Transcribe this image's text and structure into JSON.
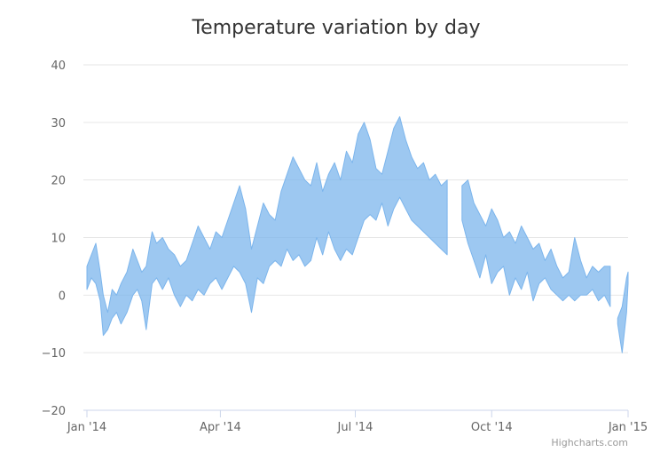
{
  "chart_data": {
    "type": "area",
    "subtype": "arearange",
    "title": "Temperature variation by day",
    "xlabel": "",
    "ylabel": "",
    "ylim": [
      -20,
      40
    ],
    "yticks": [
      40,
      30,
      20,
      10,
      0,
      -10,
      -20
    ],
    "y_tick_labels": [
      "40",
      "30",
      "20",
      "10",
      "0",
      "−10",
      "−20"
    ],
    "xlim": [
      "2014-01-01",
      "2015-01-01"
    ],
    "x_tick_labels": [
      {
        "date": "2014-01-01",
        "label": "Jan '14"
      },
      {
        "date": "2014-04-01",
        "label": "Apr '14"
      },
      {
        "date": "2014-07-01",
        "label": "Jul '14"
      },
      {
        "date": "2014-10-01",
        "label": "Oct '14"
      },
      {
        "date": "2015-01-01",
        "label": "Jan '15"
      }
    ],
    "grid": true,
    "legend": "none",
    "series": [
      {
        "color": "#7cb5ec",
        "segments": [
          {
            "dates": [
              "2014-01-01",
              "2014-01-04",
              "2014-01-07",
              "2014-01-10",
              "2014-01-12",
              "2014-01-15",
              "2014-01-18",
              "2014-01-21",
              "2014-01-24",
              "2014-01-28",
              "2014-02-01",
              "2014-02-04",
              "2014-02-07",
              "2014-02-10",
              "2014-02-14",
              "2014-02-17",
              "2014-02-21",
              "2014-02-25",
              "2014-03-01",
              "2014-03-05",
              "2014-03-09",
              "2014-03-13",
              "2014-03-17",
              "2014-03-21",
              "2014-03-25",
              "2014-03-29",
              "2014-04-02",
              "2014-04-06",
              "2014-04-10",
              "2014-04-14",
              "2014-04-18",
              "2014-04-22",
              "2014-04-26",
              "2014-04-30",
              "2014-05-04",
              "2014-05-08",
              "2014-05-12",
              "2014-05-16",
              "2014-05-20",
              "2014-05-24",
              "2014-05-28",
              "2014-06-01",
              "2014-06-05",
              "2014-06-09",
              "2014-06-13",
              "2014-06-17",
              "2014-06-21",
              "2014-06-25",
              "2014-06-29",
              "2014-07-03",
              "2014-07-07",
              "2014-07-11",
              "2014-07-15",
              "2014-07-19",
              "2014-07-23",
              "2014-07-27",
              "2014-07-31",
              "2014-08-04",
              "2014-08-08",
              "2014-08-12",
              "2014-08-16",
              "2014-08-20",
              "2014-08-24",
              "2014-08-28",
              "2014-09-01"
            ],
            "low": [
              1,
              3,
              2,
              -1,
              -7,
              -6,
              -4,
              -3,
              -5,
              -3,
              0,
              1,
              -1,
              -6,
              2,
              3,
              1,
              3,
              0,
              -2,
              0,
              -1,
              1,
              0,
              2,
              3,
              1,
              3,
              5,
              4,
              2,
              -3,
              3,
              2,
              5,
              6,
              5,
              8,
              6,
              7,
              5,
              6,
              10,
              7,
              11,
              8,
              6,
              8,
              7,
              10,
              13,
              14,
              13,
              16,
              12,
              15,
              17,
              15,
              13,
              12,
              11,
              10,
              9,
              8,
              7
            ],
            "high": [
              5,
              7,
              9,
              4,
              0,
              -3,
              1,
              0,
              2,
              4,
              8,
              6,
              4,
              5,
              11,
              9,
              10,
              8,
              7,
              5,
              6,
              9,
              12,
              10,
              8,
              11,
              10,
              13,
              16,
              19,
              15,
              8,
              12,
              16,
              14,
              13,
              18,
              21,
              24,
              22,
              20,
              19,
              23,
              18,
              21,
              23,
              20,
              25,
              23,
              28,
              30,
              27,
              22,
              21,
              25,
              29,
              31,
              27,
              24,
              22,
              23,
              20,
              21,
              19,
              20
            ]
          },
          {
            "dates": [
              "2014-09-11",
              "2014-09-15",
              "2014-09-19",
              "2014-09-23",
              "2014-09-27",
              "2014-10-01",
              "2014-10-05",
              "2014-10-09",
              "2014-10-13",
              "2014-10-17",
              "2014-10-21",
              "2014-10-25",
              "2014-10-29",
              "2014-11-02",
              "2014-11-06",
              "2014-11-10",
              "2014-11-14",
              "2014-11-18",
              "2014-11-22",
              "2014-11-26",
              "2014-11-30",
              "2014-12-04",
              "2014-12-08",
              "2014-12-12",
              "2014-12-16",
              "2014-12-20"
            ],
            "low": [
              13,
              9,
              6,
              3,
              7,
              2,
              4,
              5,
              0,
              3,
              1,
              4,
              -1,
              2,
              3,
              1,
              0,
              -1,
              0,
              -1,
              0,
              0,
              1,
              -1,
              0,
              -2
            ],
            "high": [
              19,
              20,
              16,
              14,
              12,
              15,
              13,
              10,
              11,
              9,
              12,
              10,
              8,
              9,
              6,
              8,
              5,
              3,
              4,
              10,
              6,
              3,
              5,
              4,
              5,
              5
            ]
          },
          {
            "dates": [
              "2014-12-25",
              "2014-12-28",
              "2014-12-31",
              "2015-01-01"
            ],
            "low": [
              -5,
              -10,
              -3,
              2
            ],
            "high": [
              -4,
              -2,
              3,
              4
            ]
          }
        ]
      }
    ]
  },
  "credit": "Highcharts.com"
}
